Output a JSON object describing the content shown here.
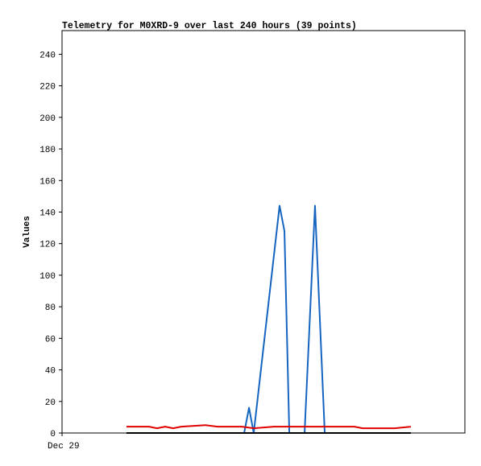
{
  "chart_data": {
    "type": "line",
    "title": "Telemetry for M0XRD-9 over last 240 hours (39 points)",
    "y_label": "Values",
    "xlim": [
      0,
      240
    ],
    "xticks": [
      {
        "value": 0,
        "label": "Dec 29"
      }
    ],
    "ylim": [
      0,
      255
    ],
    "yticks": [
      0,
      20,
      40,
      60,
      80,
      100,
      120,
      140,
      160,
      180,
      200,
      220,
      240
    ],
    "grid": false,
    "series": [
      {
        "name": null,
        "color": "#1565c0",
        "x": [
          108.5,
          111.4,
          114.2,
          129.6,
          132.5,
          135.4,
          144.5,
          150.7,
          156.5
        ],
        "values": [
          0,
          16,
          0,
          144,
          128,
          0,
          0,
          144,
          0
        ]
      },
      {
        "name": null,
        "color": "#e00000",
        "x": [
          38.4,
          51.8,
          56.6,
          61.4,
          66.2,
          71.0,
          85.4,
          92.6,
          107.0,
          114.2,
          126.2,
          174.2,
          179.0,
          198.2,
          207.8
        ],
        "values": [
          4,
          4,
          3,
          4,
          3,
          4,
          5,
          4,
          4,
          3,
          4,
          4,
          3,
          3,
          4
        ]
      },
      {
        "name": null,
        "color": "#000000",
        "x": [
          38.4,
          207.8
        ],
        "values": [
          0,
          0
        ]
      }
    ]
  }
}
